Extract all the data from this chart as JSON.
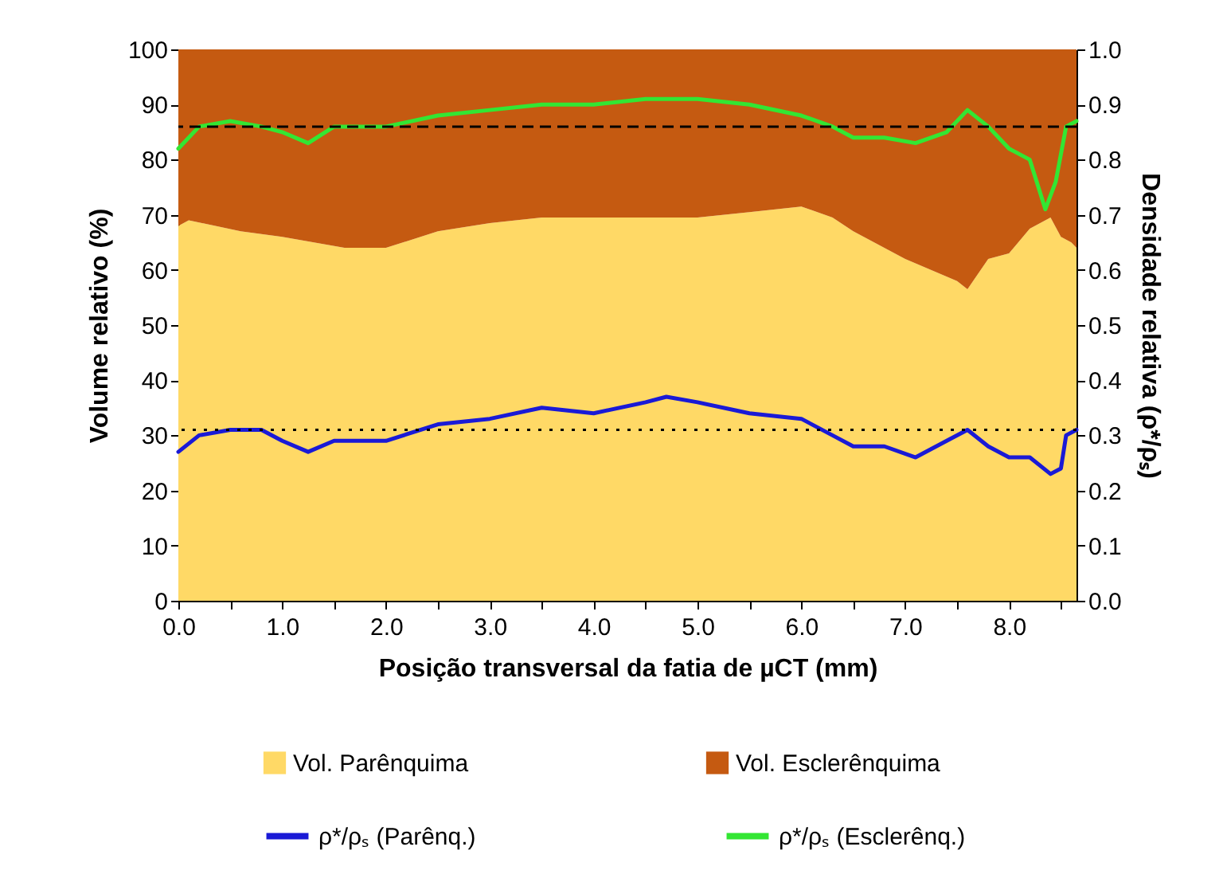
{
  "chart_data": {
    "type": "area",
    "stacked": true,
    "xlabel": "Posição transversal da fatia de µCT (mm)",
    "ylabel": "Volume relativo (%)",
    "y2label": "Densidade relativa (ρ*/ρₛ)",
    "xlim": [
      0,
      8.65
    ],
    "xticks": [
      {
        "value": 0,
        "label": "0.0"
      },
      {
        "value": 0.5,
        "label": null
      },
      {
        "value": 1,
        "label": "1.0"
      },
      {
        "value": 1.5,
        "label": null
      },
      {
        "value": 2,
        "label": "2.0"
      },
      {
        "value": 2.5,
        "label": null
      },
      {
        "value": 3,
        "label": "3.0"
      },
      {
        "value": 3.5,
        "label": null
      },
      {
        "value": 4,
        "label": "4.0"
      },
      {
        "value": 4.5,
        "label": null
      },
      {
        "value": 5,
        "label": "5.0"
      },
      {
        "value": 5.5,
        "label": null
      },
      {
        "value": 6,
        "label": "6.0"
      },
      {
        "value": 6.5,
        "label": null
      },
      {
        "value": 7,
        "label": "7.0"
      },
      {
        "value": 7.5,
        "label": null
      },
      {
        "value": 8,
        "label": "8.0"
      },
      {
        "value": 8.5,
        "label": null
      }
    ],
    "ylim": [
      0,
      100
    ],
    "yticks": [
      0,
      10,
      20,
      30,
      40,
      50,
      60,
      70,
      80,
      90,
      100
    ],
    "y2lim": [
      0,
      1
    ],
    "y2ticks": [
      {
        "value": 0,
        "label": "0.0"
      },
      {
        "value": 0.1,
        "label": "0.1"
      },
      {
        "value": 0.2,
        "label": "0.2"
      },
      {
        "value": 0.3,
        "label": "0.3"
      },
      {
        "value": 0.4,
        "label": "0.4"
      },
      {
        "value": 0.5,
        "label": "0.5"
      },
      {
        "value": 0.6,
        "label": "0.6"
      },
      {
        "value": 0.7,
        "label": "0.7"
      },
      {
        "value": 0.8,
        "label": "0.8"
      },
      {
        "value": 0.9,
        "label": "0.9"
      },
      {
        "value": 1,
        "label": "1.0"
      }
    ],
    "grid": false,
    "legend": "bottom",
    "series": [
      {
        "name": "Vol. Parênquima",
        "color": "#ffd966",
        "x": [
          0,
          0.1,
          0.6,
          1,
          1.6,
          2,
          2.5,
          3,
          3.5,
          4,
          4.5,
          5,
          5.5,
          6,
          6.3,
          6.5,
          7,
          7.5,
          7.6,
          7.8,
          8,
          8.2,
          8.4,
          8.5,
          8.6,
          8.65
        ],
        "values": [
          68,
          69,
          67,
          66,
          64,
          64,
          67,
          68.5,
          69.5,
          69.5,
          69.5,
          69.5,
          70.5,
          71.5,
          69.5,
          67,
          62,
          58,
          56.5,
          62,
          63,
          67.5,
          69.5,
          66,
          65,
          64
        ]
      },
      {
        "name": "Vol. Esclerênquima",
        "color": "#c55a11",
        "x": [
          0,
          0.1,
          0.6,
          1,
          1.6,
          2,
          2.5,
          3,
          3.5,
          4,
          4.5,
          5,
          5.5,
          6,
          6.3,
          6.5,
          7,
          7.5,
          7.6,
          7.8,
          8,
          8.2,
          8.4,
          8.5,
          8.6,
          8.65
        ],
        "values": [
          32,
          31,
          33,
          34,
          36,
          36,
          33,
          31.5,
          30.5,
          30.5,
          30.5,
          30.5,
          29.5,
          28.5,
          30.5,
          33,
          38,
          42,
          43.5,
          38,
          37,
          32.5,
          30.5,
          34,
          35,
          36
        ]
      },
      {
        "name": "ρ*/ρₛ (Parênq.)",
        "type": "line",
        "axis": "y2",
        "color": "#1a1ad6",
        "x": [
          0,
          0.2,
          0.5,
          0.8,
          1,
          1.25,
          1.5,
          2,
          2.5,
          3,
          3.5,
          4,
          4.5,
          4.7,
          5,
          5.5,
          6,
          6.3,
          6.5,
          6.8,
          7.1,
          7.4,
          7.6,
          7.8,
          8,
          8.2,
          8.4,
          8.5,
          8.55,
          8.65
        ],
        "values": [
          0.27,
          0.3,
          0.31,
          0.31,
          0.29,
          0.27,
          0.29,
          0.29,
          0.32,
          0.33,
          0.35,
          0.34,
          0.36,
          0.37,
          0.36,
          0.34,
          0.33,
          0.3,
          0.28,
          0.28,
          0.26,
          0.29,
          0.31,
          0.28,
          0.26,
          0.26,
          0.23,
          0.24,
          0.3,
          0.31
        ]
      },
      {
        "name": "ρ*/ρₛ (Esclerênq.)",
        "type": "line",
        "axis": "y2",
        "color": "#33e633",
        "x": [
          0,
          0.2,
          0.5,
          0.8,
          1,
          1.25,
          1.5,
          1.6,
          2,
          2.5,
          3,
          3.5,
          4,
          4.5,
          4.7,
          5,
          5.5,
          6,
          6.3,
          6.5,
          6.8,
          7.1,
          7.4,
          7.6,
          7.8,
          8,
          8.2,
          8.35,
          8.45,
          8.55,
          8.65
        ],
        "values": [
          0.82,
          0.86,
          0.87,
          0.86,
          0.85,
          0.83,
          0.86,
          0.86,
          0.86,
          0.88,
          0.89,
          0.9,
          0.9,
          0.91,
          0.91,
          0.91,
          0.9,
          0.88,
          0.86,
          0.84,
          0.84,
          0.83,
          0.85,
          0.89,
          0.86,
          0.82,
          0.8,
          0.71,
          0.76,
          0.86,
          0.87
        ]
      }
    ],
    "ref_lines": [
      {
        "axis": "y2",
        "value": 0.86,
        "line_style": "dashed",
        "color": "#000000"
      },
      {
        "axis": "y2",
        "value": 0.31,
        "line_style": "dotted",
        "color": "#000000"
      }
    ]
  }
}
